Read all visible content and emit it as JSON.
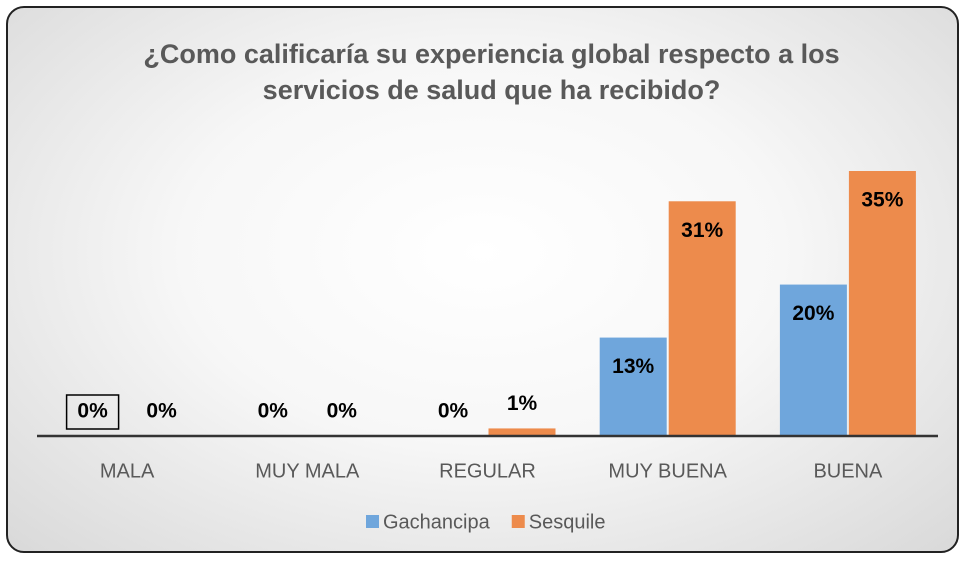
{
  "chart_data": {
    "type": "bar",
    "title": "¿Como calificaría su experiencia global respecto a los servicios de salud que ha recibido?",
    "categories": [
      "MALA",
      "MUY MALA",
      "REGULAR",
      "MUY BUENA",
      "BUENA"
    ],
    "series": [
      {
        "name": "Gachancipa",
        "color": "#6fa6dc",
        "values": [
          0,
          0,
          0,
          13,
          20
        ],
        "value_labels": [
          "0%",
          "0%",
          "0%",
          "13%",
          "20%"
        ]
      },
      {
        "name": "Sesquile",
        "color": "#ed8b4c",
        "values": [
          0,
          0,
          1,
          31,
          35
        ],
        "value_labels": [
          "0%",
          "0%",
          "1%",
          "31%",
          "35%"
        ]
      }
    ]
  }
}
